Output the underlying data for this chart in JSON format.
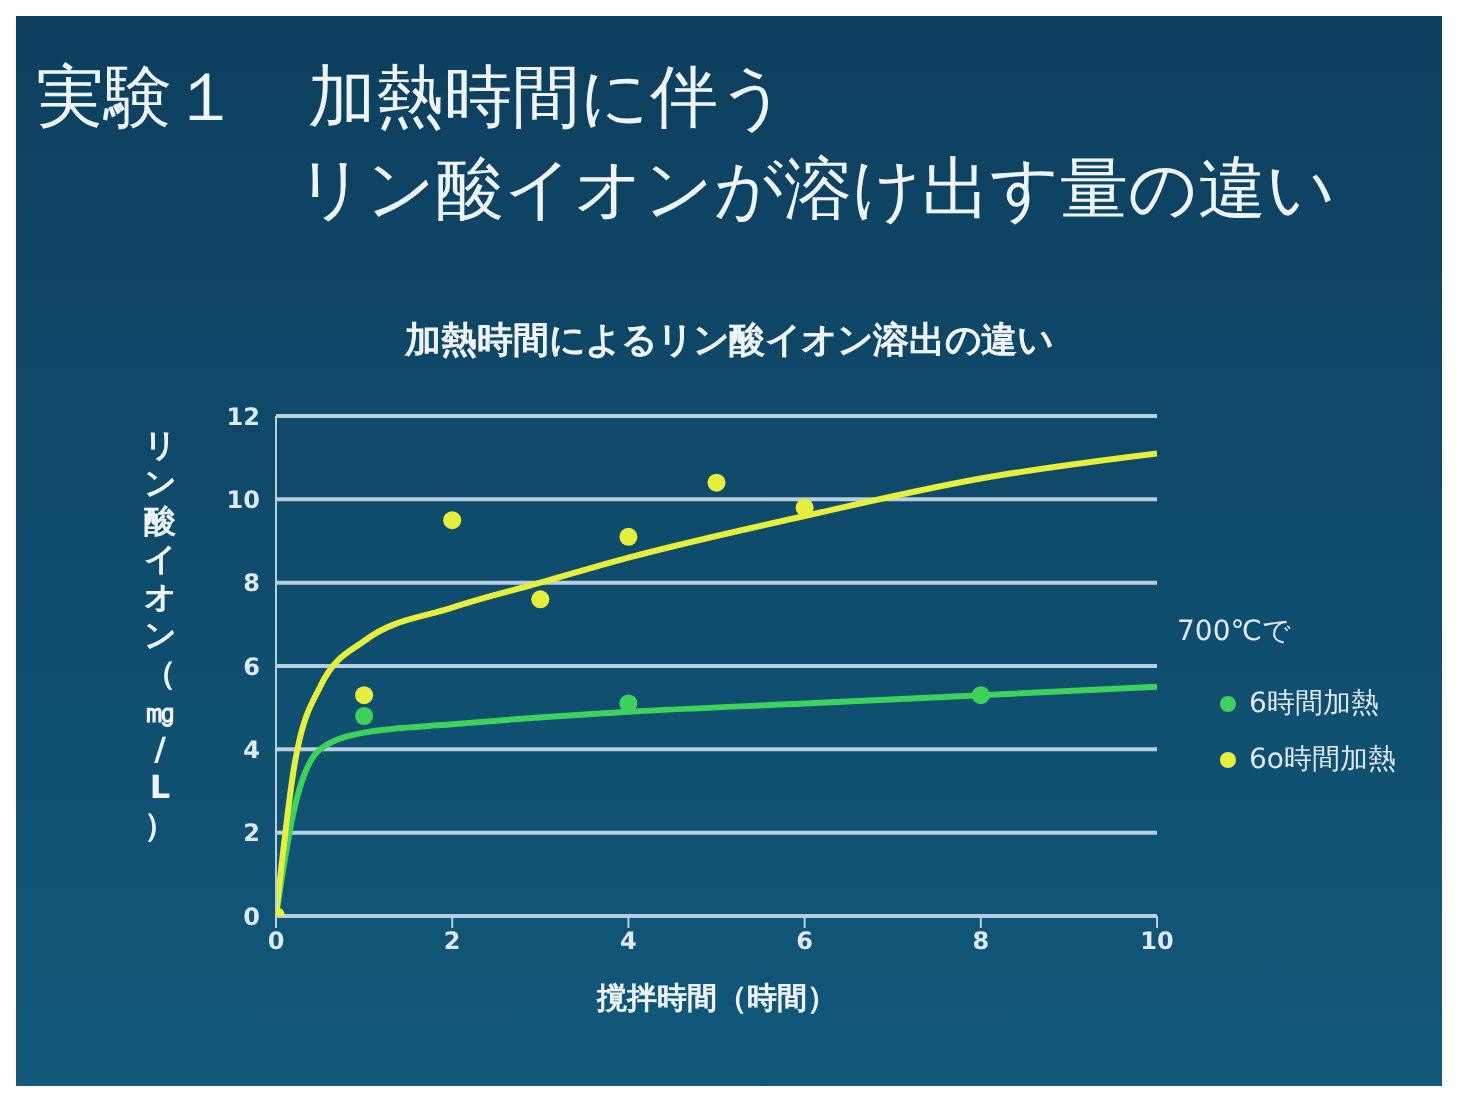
{
  "chart_data": {
    "type": "scatter",
    "title": "実験１　加熱時間に伴う",
    "subtitle": "リン酸イオンが溶け出す量の違い",
    "annotations": [
      "加熱時間によるリン酸イオン溶出の違い"
    ],
    "xlabel": "撹拌時間（時間）",
    "ylabel": "リン酸イオン（㎎/L）",
    "legend_title": "700℃で",
    "series": [
      {
        "name": "6時間加熱",
        "color": "#3fd25a",
        "x": [
          1,
          4,
          8
        ],
        "values": [
          4.8,
          5.1,
          5.3
        ]
      },
      {
        "name": "6o時間加熱",
        "color": "#e6ef3a",
        "x": [
          0,
          1,
          2,
          3,
          4,
          5,
          6
        ],
        "values": [
          0,
          5.3,
          9.5,
          7.6,
          9.1,
          10.4,
          9.8
        ]
      },
      {
        "type": "line",
        "marker": "none",
        "color": "#3fd25a",
        "x": [
          0,
          0.2,
          0.5,
          1,
          2,
          4,
          6,
          8,
          10
        ],
        "values": [
          0,
          2.5,
          4.0,
          4.4,
          4.6,
          4.9,
          5.1,
          5.3,
          5.5
        ]
      },
      {
        "type": "line",
        "marker": "none",
        "color": "#e6ef3a",
        "x": [
          0,
          0.2,
          0.5,
          1,
          2,
          3,
          4,
          6,
          8,
          10
        ],
        "values": [
          0,
          3.5,
          5.5,
          6.6,
          7.4,
          8.0,
          8.6,
          9.6,
          10.5,
          11.1
        ]
      }
    ],
    "xlim": [
      0,
      10
    ],
    "xticks": [
      0,
      2,
      4,
      6,
      8,
      10
    ],
    "ylim": [
      0,
      12
    ],
    "yticks": [
      0,
      2,
      4,
      6,
      8,
      10,
      12
    ],
    "grid": "y",
    "legend": "right",
    "marker": "circle",
    "line_style": "solid"
  }
}
